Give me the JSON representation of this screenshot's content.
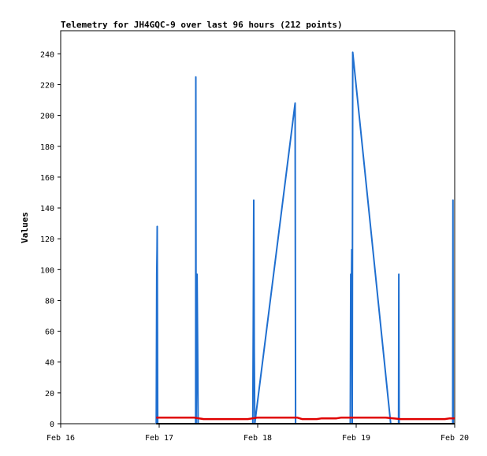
{
  "chart_data": {
    "type": "line",
    "title": "Telemetry for JH4GQC-9 over last 96 hours (212 points)",
    "xlabel": "",
    "ylabel": "Values",
    "xlim": [
      "Feb 16",
      "Feb 20"
    ],
    "ylim": [
      0,
      255
    ],
    "x_ticks": [
      "Feb 16",
      "Feb 17",
      "Feb 18",
      "Feb 19",
      "Feb 20"
    ],
    "y_ticks": [
      0,
      20,
      40,
      60,
      80,
      100,
      120,
      140,
      160,
      180,
      200,
      220,
      240
    ],
    "grid": false,
    "legend": "none",
    "x_unit": "days from Feb 16",
    "series": [
      {
        "color": "#1f6fd0",
        "points": [
          [
            0.97,
            0
          ],
          [
            0.975,
            97
          ],
          [
            0.978,
            113
          ],
          [
            0.98,
            128
          ],
          [
            0.985,
            0
          ],
          [
            1.37,
            0
          ],
          [
            1.372,
            225
          ],
          [
            1.375,
            0
          ],
          [
            1.385,
            97
          ],
          [
            1.39,
            49
          ],
          [
            1.395,
            0
          ],
          [
            1.95,
            0
          ],
          [
            1.955,
            65
          ],
          [
            1.96,
            145
          ],
          [
            1.965,
            49
          ],
          [
            1.97,
            0
          ],
          [
            2.38,
            208
          ],
          [
            2.385,
            0
          ],
          [
            2.94,
            0
          ],
          [
            2.945,
            97
          ],
          [
            2.95,
            80
          ],
          [
            2.955,
            113
          ],
          [
            2.96,
            0
          ],
          [
            2.965,
            241
          ],
          [
            3.35,
            0
          ],
          [
            3.43,
            0
          ],
          [
            3.433,
            97
          ],
          [
            3.436,
            0
          ],
          [
            3.98,
            0
          ],
          [
            3.982,
            145
          ],
          [
            3.985,
            0
          ]
        ]
      },
      {
        "color": "#e00000",
        "points": [
          [
            0.97,
            4
          ],
          [
            1.35,
            4
          ],
          [
            1.45,
            3
          ],
          [
            1.9,
            3
          ],
          [
            2.0,
            4
          ],
          [
            2.4,
            4
          ],
          [
            2.45,
            3
          ],
          [
            2.6,
            3
          ],
          [
            2.65,
            3.5
          ],
          [
            2.8,
            3.5
          ],
          [
            2.85,
            4
          ],
          [
            3.3,
            4
          ],
          [
            3.45,
            3
          ],
          [
            3.9,
            3
          ],
          [
            3.95,
            3.5
          ],
          [
            4.0,
            3.5
          ]
        ]
      },
      {
        "color": "#000000",
        "points": [
          [
            0.97,
            0
          ],
          [
            4.0,
            0
          ]
        ]
      }
    ]
  }
}
